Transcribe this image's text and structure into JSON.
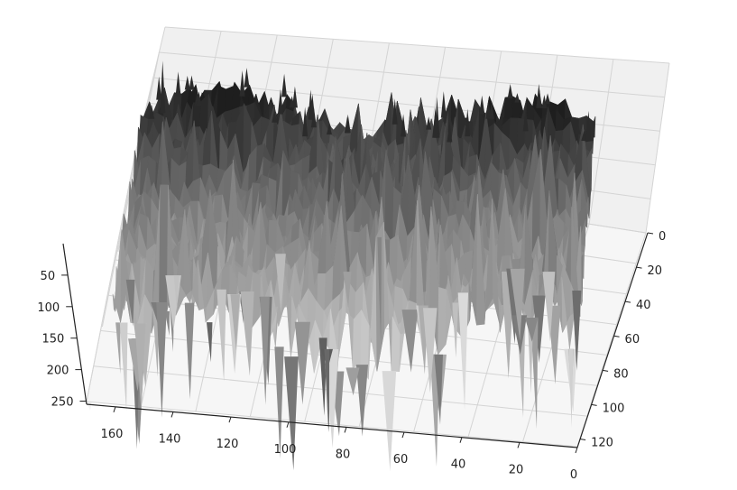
{
  "chart_data": {
    "type": "surface3d",
    "title": "",
    "xlabel": "",
    "ylabel": "",
    "zlabel": "",
    "colormap": "grayscale",
    "z_inverted": true,
    "x_axis": {
      "range": [
        0,
        170
      ],
      "ticks": [
        "160",
        "140",
        "120",
        "100",
        "80",
        "60",
        "40",
        "20",
        "0"
      ]
    },
    "y_axis": {
      "range": [
        0,
        125
      ],
      "ticks": [
        "0",
        "20",
        "40",
        "60",
        "80",
        "100",
        "120"
      ]
    },
    "z_axis": {
      "range": [
        0,
        255
      ],
      "ticks": [
        "50",
        "100",
        "150",
        "200",
        "250"
      ]
    },
    "grid": true,
    "pane_color": "#f2f2f2",
    "surface_dark": "#2a2a2a",
    "surface_light": "#d6d6d6"
  }
}
